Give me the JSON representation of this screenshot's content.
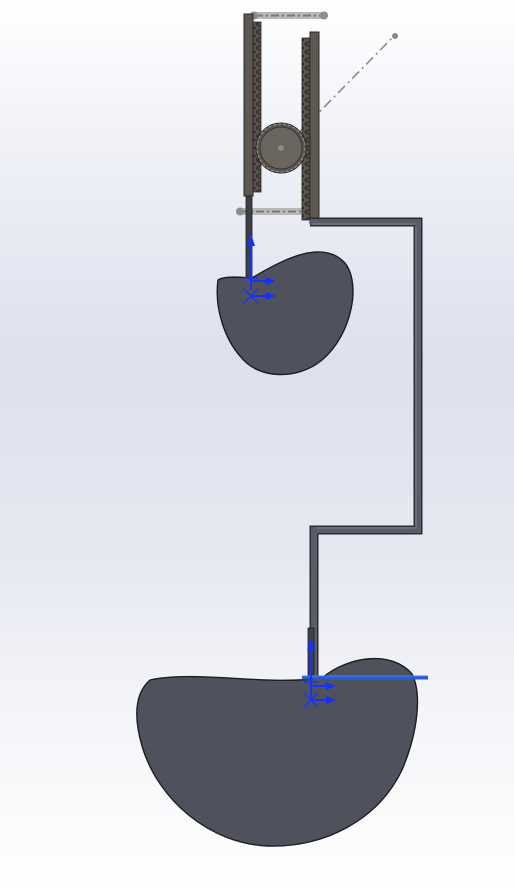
{
  "viewport": {
    "background_top": "#ffffff",
    "background_mid": "#dde1ee",
    "background_bottom": "#ffffff"
  },
  "colors": {
    "cam_fill": "#4f525d",
    "cam_stroke": "#1c1d22",
    "rack_fill": "#58524c",
    "rack_teeth": "#3a3632",
    "linkage_fill": "#5a5d69",
    "gear_fill": "#6a655f",
    "ref_line": "#8a8a8a",
    "triad_blue": "#1432ff",
    "follower_highlight": "#2a5bd7"
  },
  "parts": {
    "upper_cam": "cam-small",
    "lower_cam": "cam-large",
    "rack_left": "rack-left",
    "rack_right": "rack-right",
    "pinion": "pinion-gear",
    "linkage": "connecting-link",
    "follower_upper": "follower-upper",
    "follower_lower": "follower-lower"
  }
}
